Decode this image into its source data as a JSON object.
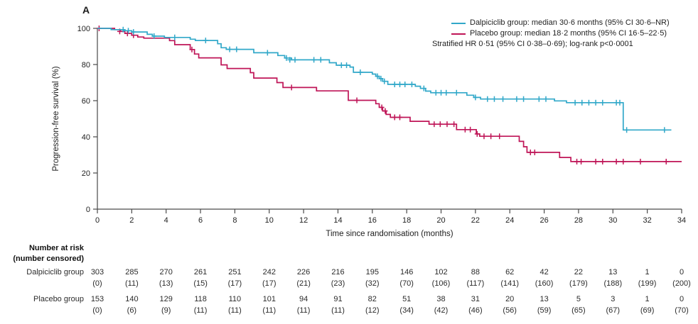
{
  "panel_label": "A",
  "legend": {
    "entries": [
      {
        "name": "dalpiciclib",
        "color": "#31A8C9",
        "label": "Dalpiciclib group: median 30·6 months (95% CI 30·6–NR)"
      },
      {
        "name": "placebo",
        "color": "#BF1557",
        "label": "Placebo group: median 18·2 months (95% CI 16·5–22·5)"
      }
    ],
    "note": "Stratified HR 0·51 (95% CI 0·38–0·69); log-rank p<0·0001"
  },
  "chart_data": {
    "type": "line",
    "subtype": "kaplan-meier",
    "title": "",
    "xlabel": "Time since randomisation (months)",
    "ylabel": "Progression-free survival (%)",
    "xlim": [
      0,
      34
    ],
    "ylim": [
      0,
      100
    ],
    "xticks": [
      0,
      2,
      4,
      6,
      8,
      10,
      12,
      14,
      16,
      18,
      20,
      22,
      24,
      26,
      28,
      30,
      32,
      34
    ],
    "yticks": [
      0,
      20,
      40,
      60,
      80,
      100
    ],
    "grid": false,
    "legend_position": "top-right",
    "axis_color": "#4a4a4a",
    "tick_text_color": "#222222",
    "series": [
      {
        "name": "Placebo group",
        "color": "#BF1557",
        "median_months": 18.2,
        "steps": [
          [
            0,
            100
          ],
          [
            1.0,
            100
          ],
          [
            1.0,
            99.3
          ],
          [
            1.35,
            99.3
          ],
          [
            1.35,
            98.3
          ],
          [
            1.6,
            98.3
          ],
          [
            1.6,
            97.2
          ],
          [
            2.0,
            97.2
          ],
          [
            2.0,
            96.2
          ],
          [
            2.35,
            96.2
          ],
          [
            2.35,
            95.2
          ],
          [
            2.7,
            95.2
          ],
          [
            2.7,
            94.6
          ],
          [
            4.2,
            94.6
          ],
          [
            4.2,
            93.2
          ],
          [
            4.5,
            93.2
          ],
          [
            4.5,
            91.0
          ],
          [
            5.4,
            91.0
          ],
          [
            5.4,
            88.3
          ],
          [
            5.65,
            88.3
          ],
          [
            5.65,
            85.8
          ],
          [
            5.9,
            85.8
          ],
          [
            5.9,
            83.7
          ],
          [
            7.2,
            83.7
          ],
          [
            7.2,
            79.8
          ],
          [
            7.55,
            79.8
          ],
          [
            7.55,
            77.8
          ],
          [
            8.9,
            77.8
          ],
          [
            8.9,
            75.5
          ],
          [
            9.1,
            75.5
          ],
          [
            9.1,
            72.5
          ],
          [
            10.45,
            72.5
          ],
          [
            10.45,
            70.0
          ],
          [
            10.8,
            70.0
          ],
          [
            10.8,
            67.3
          ],
          [
            12.75,
            67.3
          ],
          [
            12.75,
            65.4
          ],
          [
            14.6,
            65.4
          ],
          [
            14.6,
            60.2
          ],
          [
            16.2,
            60.2
          ],
          [
            16.2,
            58.3
          ],
          [
            16.4,
            58.3
          ],
          [
            16.4,
            56.3
          ],
          [
            16.6,
            56.3
          ],
          [
            16.6,
            54.3
          ],
          [
            16.8,
            54.3
          ],
          [
            16.8,
            52.4
          ],
          [
            17.05,
            52.4
          ],
          [
            17.05,
            50.8
          ],
          [
            18.2,
            50.8
          ],
          [
            18.2,
            48.6
          ],
          [
            19.3,
            48.6
          ],
          [
            19.3,
            47.0
          ],
          [
            20.9,
            47.0
          ],
          [
            20.9,
            44.0
          ],
          [
            22.05,
            44.0
          ],
          [
            22.05,
            41.6
          ],
          [
            22.25,
            41.6
          ],
          [
            22.25,
            40.3
          ],
          [
            24.55,
            40.3
          ],
          [
            24.55,
            37.5
          ],
          [
            24.8,
            37.5
          ],
          [
            24.8,
            34.5
          ],
          [
            25.0,
            34.5
          ],
          [
            25.0,
            31.4
          ],
          [
            26.9,
            31.4
          ],
          [
            26.9,
            28.6
          ],
          [
            27.55,
            28.6
          ],
          [
            27.55,
            26.3
          ],
          [
            34.0,
            26.3
          ]
        ],
        "censors": [
          [
            0.1,
            100
          ],
          [
            1.3,
            98.3
          ],
          [
            1.75,
            97.2
          ],
          [
            2.1,
            96.2
          ],
          [
            5.5,
            88.3
          ],
          [
            11.3,
            67.3
          ],
          [
            15.1,
            60.2
          ],
          [
            16.55,
            56.3
          ],
          [
            16.75,
            54.3
          ],
          [
            17.3,
            50.8
          ],
          [
            17.6,
            50.8
          ],
          [
            19.6,
            47.0
          ],
          [
            19.95,
            47.0
          ],
          [
            20.35,
            47.0
          ],
          [
            20.75,
            47.0
          ],
          [
            21.4,
            44.0
          ],
          [
            21.7,
            44.0
          ],
          [
            22.1,
            41.6
          ],
          [
            22.5,
            40.3
          ],
          [
            22.9,
            40.3
          ],
          [
            23.4,
            40.3
          ],
          [
            25.2,
            31.4
          ],
          [
            25.45,
            31.4
          ],
          [
            27.9,
            26.3
          ],
          [
            28.15,
            26.3
          ],
          [
            29.0,
            26.3
          ],
          [
            29.4,
            26.3
          ],
          [
            30.2,
            26.3
          ],
          [
            30.6,
            26.3
          ],
          [
            31.6,
            26.3
          ],
          [
            33.1,
            26.3
          ]
        ]
      },
      {
        "name": "Dalpiciclib group",
        "color": "#31A8C9",
        "median_months": 30.6,
        "steps": [
          [
            0,
            100
          ],
          [
            0.8,
            100
          ],
          [
            0.8,
            99.3
          ],
          [
            1.5,
            99.3
          ],
          [
            1.5,
            98.7
          ],
          [
            2.0,
            98.7
          ],
          [
            2.0,
            98.0
          ],
          [
            2.9,
            98.0
          ],
          [
            2.9,
            96.7
          ],
          [
            3.2,
            96.7
          ],
          [
            3.2,
            95.7
          ],
          [
            3.9,
            95.7
          ],
          [
            3.9,
            95.0
          ],
          [
            5.4,
            95.0
          ],
          [
            5.4,
            94.0
          ],
          [
            5.7,
            94.0
          ],
          [
            5.7,
            93.3
          ],
          [
            7.0,
            93.3
          ],
          [
            7.0,
            91.5
          ],
          [
            7.2,
            91.5
          ],
          [
            7.2,
            89.3
          ],
          [
            7.5,
            89.3
          ],
          [
            7.5,
            88.4
          ],
          [
            9.1,
            88.4
          ],
          [
            9.1,
            86.5
          ],
          [
            10.5,
            86.5
          ],
          [
            10.5,
            85.0
          ],
          [
            10.9,
            85.0
          ],
          [
            10.9,
            83.6
          ],
          [
            11.3,
            83.6
          ],
          [
            11.3,
            82.6
          ],
          [
            13.5,
            82.6
          ],
          [
            13.5,
            81.0
          ],
          [
            13.9,
            81.0
          ],
          [
            13.9,
            79.6
          ],
          [
            14.7,
            79.6
          ],
          [
            14.7,
            78.6
          ],
          [
            14.9,
            78.6
          ],
          [
            14.9,
            75.7
          ],
          [
            16.0,
            75.7
          ],
          [
            16.0,
            74.7
          ],
          [
            16.2,
            74.7
          ],
          [
            16.2,
            73.5
          ],
          [
            16.4,
            73.5
          ],
          [
            16.4,
            72.2
          ],
          [
            16.6,
            72.2
          ],
          [
            16.6,
            70.7
          ],
          [
            16.9,
            70.7
          ],
          [
            16.9,
            69.0
          ],
          [
            18.5,
            69.0
          ],
          [
            18.5,
            68.0
          ],
          [
            18.8,
            68.0
          ],
          [
            18.8,
            66.8
          ],
          [
            19.1,
            66.8
          ],
          [
            19.1,
            65.3
          ],
          [
            19.4,
            65.3
          ],
          [
            19.4,
            64.4
          ],
          [
            21.5,
            64.4
          ],
          [
            21.5,
            63.0
          ],
          [
            21.9,
            63.0
          ],
          [
            21.9,
            61.8
          ],
          [
            22.3,
            61.8
          ],
          [
            22.3,
            60.9
          ],
          [
            26.6,
            60.9
          ],
          [
            26.6,
            59.9
          ],
          [
            27.3,
            59.9
          ],
          [
            27.3,
            58.9
          ],
          [
            30.6,
            58.9
          ],
          [
            30.6,
            43.8
          ],
          [
            33.4,
            43.8
          ]
        ],
        "censors": [
          [
            1.5,
            99.3
          ],
          [
            1.8,
            98.7
          ],
          [
            2.1,
            98.0
          ],
          [
            3.3,
            95.7
          ],
          [
            4.5,
            95.0
          ],
          [
            6.3,
            93.3
          ],
          [
            7.7,
            88.4
          ],
          [
            8.1,
            88.4
          ],
          [
            9.9,
            86.5
          ],
          [
            11.0,
            83.6
          ],
          [
            11.2,
            82.6
          ],
          [
            11.5,
            82.6
          ],
          [
            12.6,
            82.6
          ],
          [
            13.0,
            82.6
          ],
          [
            14.2,
            79.6
          ],
          [
            14.5,
            79.6
          ],
          [
            15.3,
            75.7
          ],
          [
            16.3,
            73.5
          ],
          [
            16.5,
            72.2
          ],
          [
            16.7,
            70.7
          ],
          [
            17.3,
            69.0
          ],
          [
            17.6,
            69.0
          ],
          [
            17.9,
            69.0
          ],
          [
            18.3,
            69.0
          ],
          [
            19.0,
            66.8
          ],
          [
            19.7,
            64.4
          ],
          [
            20.0,
            64.4
          ],
          [
            20.3,
            64.4
          ],
          [
            20.9,
            64.4
          ],
          [
            22.0,
            61.8
          ],
          [
            22.7,
            60.9
          ],
          [
            23.1,
            60.9
          ],
          [
            23.6,
            60.9
          ],
          [
            24.4,
            60.9
          ],
          [
            24.8,
            60.9
          ],
          [
            25.7,
            60.9
          ],
          [
            26.1,
            60.9
          ],
          [
            27.8,
            58.9
          ],
          [
            28.2,
            58.9
          ],
          [
            28.6,
            58.9
          ],
          [
            29.0,
            58.9
          ],
          [
            29.4,
            58.9
          ],
          [
            30.2,
            58.9
          ],
          [
            30.4,
            58.9
          ],
          [
            30.8,
            43.8
          ],
          [
            33.0,
            43.8
          ]
        ]
      }
    ]
  },
  "risk_table": {
    "header_line1": "Number at risk",
    "header_line2": "(number censored)",
    "time_points": [
      0,
      2,
      4,
      6,
      8,
      10,
      12,
      14,
      16,
      18,
      20,
      22,
      24,
      26,
      28,
      30,
      32,
      34
    ],
    "rows": [
      {
        "label": "Dalpiciclib group",
        "counts": [
          "303",
          "285",
          "270",
          "261",
          "251",
          "242",
          "226",
          "216",
          "195",
          "146",
          "102",
          "88",
          "62",
          "42",
          "22",
          "13",
          "1",
          "0"
        ],
        "censored": [
          "(0)",
          "(11)",
          "(13)",
          "(15)",
          "(17)",
          "(17)",
          "(21)",
          "(23)",
          "(32)",
          "(70)",
          "(106)",
          "(117)",
          "(141)",
          "(160)",
          "(179)",
          "(188)",
          "(199)",
          "(200)"
        ]
      },
      {
        "label": "Placebo group",
        "counts": [
          "153",
          "140",
          "129",
          "118",
          "110",
          "101",
          "94",
          "91",
          "82",
          "51",
          "38",
          "31",
          "20",
          "13",
          "5",
          "3",
          "1",
          "0"
        ],
        "censored": [
          "(0)",
          "(6)",
          "(9)",
          "(11)",
          "(11)",
          "(11)",
          "(11)",
          "(11)",
          "(12)",
          "(34)",
          "(42)",
          "(46)",
          "(56)",
          "(59)",
          "(65)",
          "(67)",
          "(69)",
          "(70)"
        ]
      }
    ]
  }
}
